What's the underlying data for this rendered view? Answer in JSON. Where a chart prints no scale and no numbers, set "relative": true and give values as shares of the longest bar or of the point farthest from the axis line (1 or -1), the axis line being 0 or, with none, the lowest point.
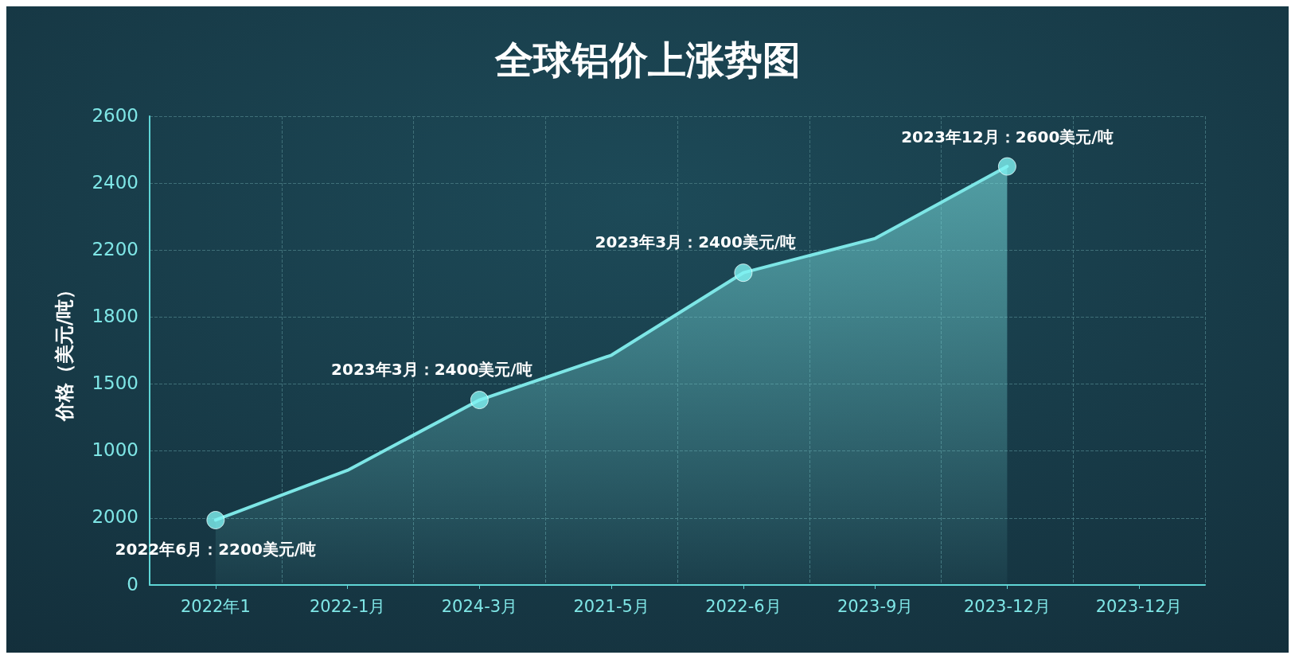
{
  "chart_data": {
    "type": "area",
    "title": "全球铝价上涨势图",
    "ylabel": "价格（美元/吨）",
    "relative": true,
    "categories": [
      "2022年1",
      "2022-1月",
      "2024-3月",
      "2021-5月",
      "2022-6月",
      "2023-9月",
      "2023-12月",
      "2023-12月"
    ],
    "series": [
      {
        "color": "#7de6e6",
        "marker": "none",
        "values": [
          0.155,
          0.274,
          0.442,
          0.549,
          0.746,
          0.828,
          1,
          null
        ]
      },
      {
        "type": "scatter",
        "color": "#80f2f2",
        "marker": "circle",
        "values": [
          0.155,
          null,
          0.442,
          null,
          0.746,
          null,
          1,
          null
        ]
      }
    ],
    "annotations": [
      {
        "text": "2022年6月：2200美元/吨",
        "x": "2022年1",
        "y": 0.155
      },
      {
        "text": "2023年3月：2400美元/吨",
        "x": "2024-3月",
        "y": 0.442
      },
      {
        "text": "2023年3月：2400美元/吨",
        "x": "2022-6月",
        "y": 0.746
      },
      {
        "text": "2023年12月：2600美元/吨",
        "x": "2023-12月",
        "y": 1
      },
      "0",
      "2000",
      "1000",
      "1500",
      "1800",
      "2200",
      "2400",
      "2600"
    ],
    "grid": true,
    "line_style": "solid"
  }
}
